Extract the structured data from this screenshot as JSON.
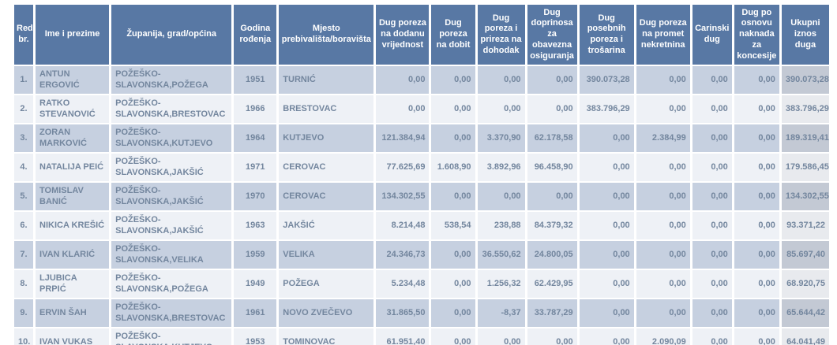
{
  "table": {
    "columns": [
      {
        "key": "red-br",
        "label": "Red. br."
      },
      {
        "key": "ime-i-prezime",
        "label": "Ime i prezime"
      },
      {
        "key": "zupanija",
        "label": "Županija, grad/općina"
      },
      {
        "key": "godina-rodjenja",
        "label": "Godina rođenja"
      },
      {
        "key": "mjesto",
        "label": "Mjesto prebivališta/boravišta"
      },
      {
        "key": "dug-pdv",
        "label": "Dug poreza na dodanu vrijednost"
      },
      {
        "key": "dug-dobit",
        "label": "Dug poreza na dobit"
      },
      {
        "key": "dug-prirez",
        "label": "Dug poreza i prireza na dohodak"
      },
      {
        "key": "dug-doprinosi",
        "label": "Dug doprinosa za obavezna osiguranja"
      },
      {
        "key": "dug-trosarine",
        "label": "Dug posebnih poreza i trošarina"
      },
      {
        "key": "dug-nekretnine",
        "label": "Dug poreza na promet nekretnina"
      },
      {
        "key": "carinski-dug",
        "label": "Carinski dug"
      },
      {
        "key": "dug-koncesije",
        "label": "Dug po osnovu naknada za koncesije"
      },
      {
        "key": "ukupni-iznos",
        "label": "Ukupni iznos duga"
      }
    ],
    "rows": [
      {
        "num": "1.",
        "name": "ANTUN ERGOVIĆ",
        "county": "POŽEŠKO-SLAVONSKA,POŽEGA",
        "birth_year": "1951",
        "place": "TURNIĆ",
        "values": [
          "0,00",
          "0,00",
          "0,00",
          "0,00",
          "390.073,28",
          "0,00",
          "0,00",
          "0,00",
          "390.073,28"
        ]
      },
      {
        "num": "2.",
        "name": "RATKO STEVANOVIĆ",
        "county": "POŽEŠKO-SLAVONSKA,BRESTOVAC",
        "birth_year": "1966",
        "place": "BRESTOVAC",
        "values": [
          "0,00",
          "0,00",
          "0,00",
          "0,00",
          "383.796,29",
          "0,00",
          "0,00",
          "0,00",
          "383.796,29"
        ]
      },
      {
        "num": "3.",
        "name": "ZORAN MARKOVIĆ",
        "county": "POŽEŠKO-SLAVONSKA,KUTJEVO",
        "birth_year": "1964",
        "place": "KUTJEVO",
        "values": [
          "121.384,94",
          "0,00",
          "3.370,90",
          "62.178,58",
          "0,00",
          "2.384,99",
          "0,00",
          "0,00",
          "189.319,41"
        ]
      },
      {
        "num": "4.",
        "name": "NATALIJA PEIĆ",
        "county": "POŽEŠKO-SLAVONSKA,JAKŠIĆ",
        "birth_year": "1971",
        "place": "CEROVAC",
        "values": [
          "77.625,69",
          "1.608,90",
          "3.892,96",
          "96.458,90",
          "0,00",
          "0,00",
          "0,00",
          "0,00",
          "179.586,45"
        ]
      },
      {
        "num": "5.",
        "name": "TOMISLAV BANIĆ",
        "county": "POŽEŠKO-SLAVONSKA,JAKŠIĆ",
        "birth_year": "1970",
        "place": "CEROVAC",
        "values": [
          "134.302,55",
          "0,00",
          "0,00",
          "0,00",
          "0,00",
          "0,00",
          "0,00",
          "0,00",
          "134.302,55"
        ]
      },
      {
        "num": "6.",
        "name": "NIKICA KREŠIĆ",
        "county": "POŽEŠKO-SLAVONSKA,JAKŠIĆ",
        "birth_year": "1963",
        "place": "JAKŠIĆ",
        "values": [
          "8.214,48",
          "538,54",
          "238,88",
          "84.379,32",
          "0,00",
          "0,00",
          "0,00",
          "0,00",
          "93.371,22"
        ]
      },
      {
        "num": "7.",
        "name": "IVAN KLARIĆ",
        "county": "POŽEŠKO-SLAVONSKA,VELIKA",
        "birth_year": "1959",
        "place": "VELIKA",
        "values": [
          "24.346,73",
          "0,00",
          "36.550,62",
          "24.800,05",
          "0,00",
          "0,00",
          "0,00",
          "0,00",
          "85.697,40"
        ]
      },
      {
        "num": "8.",
        "name": "LJUBICA PRPIĆ",
        "county": "POŽEŠKO-SLAVONSKA,POŽEGA",
        "birth_year": "1949",
        "place": "POŽEGA",
        "values": [
          "5.234,48",
          "0,00",
          "1.256,32",
          "62.429,95",
          "0,00",
          "0,00",
          "0,00",
          "0,00",
          "68.920,75"
        ]
      },
      {
        "num": "9.",
        "name": "ERVIN ŠAH",
        "county": "POŽEŠKO-SLAVONSKA,BRESTOVAC",
        "birth_year": "1961",
        "place": "NOVO ZVEČEVO",
        "values": [
          "31.865,50",
          "0,00",
          "-8,37",
          "33.787,29",
          "0,00",
          "0,00",
          "0,00",
          "0,00",
          "65.644,42"
        ]
      },
      {
        "num": "10.",
        "name": "IVAN VUKAS",
        "county": "POŽEŠKO-SLAVONSKA,KUTJEVO",
        "birth_year": "1953",
        "place": "TOMINOVAC",
        "values": [
          "61.951,40",
          "0,00",
          "0,00",
          "0,00",
          "0,00",
          "2.090,09",
          "0,00",
          "0,00",
          "64.041,49"
        ]
      }
    ]
  },
  "colors": {
    "header_bg": "#5878a4",
    "header_text": "#ffffff",
    "row_odd_bg": "#c6d0e0",
    "row_even_bg": "#eef1f6",
    "total_col_odd_bg": "#c3c9d4",
    "total_col_even_bg": "#e8eaee",
    "cell_text": "#73869e"
  }
}
